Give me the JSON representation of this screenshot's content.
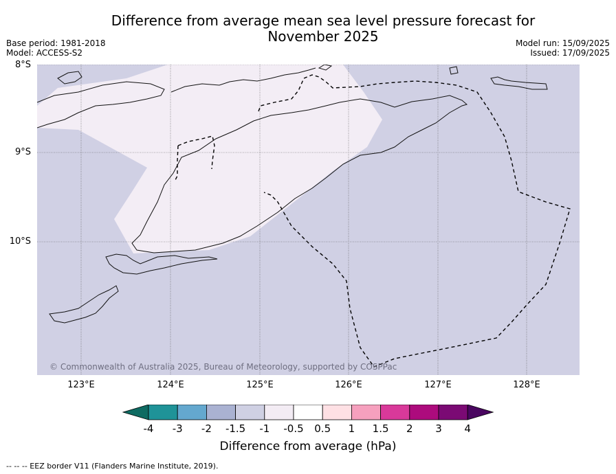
{
  "title_line1": "Difference from average mean sea level pressure forecast for",
  "title_line2": "November 2025",
  "base_period": "Base period: 1981-2018",
  "model": "Model: ACCESS-S2",
  "model_run": "Model run: 15/09/2025",
  "issued": "Issued: 17/09/2025",
  "copyright": "© Commonwealth of Australia 2025, Bureau of Meteorology, supported by COSPPac",
  "lat_labels": [
    "8°S",
    "9°S",
    "10°S"
  ],
  "lon_labels": [
    "123°E",
    "124°E",
    "125°E",
    "126°E",
    "127°E",
    "128°E"
  ],
  "colorbar": {
    "title": "Difference from average (hPa)",
    "ticks": [
      "-4",
      "-3",
      "-2",
      "-1.5",
      "-1",
      "-0.5",
      "0.5",
      "1",
      "1.5",
      "2",
      "3",
      "4"
    ],
    "colors": [
      "#0e6b62",
      "#1f9398",
      "#64a8cf",
      "#aab2d2",
      "#cfd0e3",
      "#f3ecf4",
      "#ffffff",
      "#fee0e4",
      "#f6a0be",
      "#d9399a",
      "#ad0b7d",
      "#7b0a74",
      "#4a0660"
    ]
  },
  "footnote": "--  --  -- EEZ border V11 (Flanders Marine Institute, 2019).",
  "map_colors": {
    "background": "#d0d0e4",
    "light_area": "#f3edf5"
  }
}
